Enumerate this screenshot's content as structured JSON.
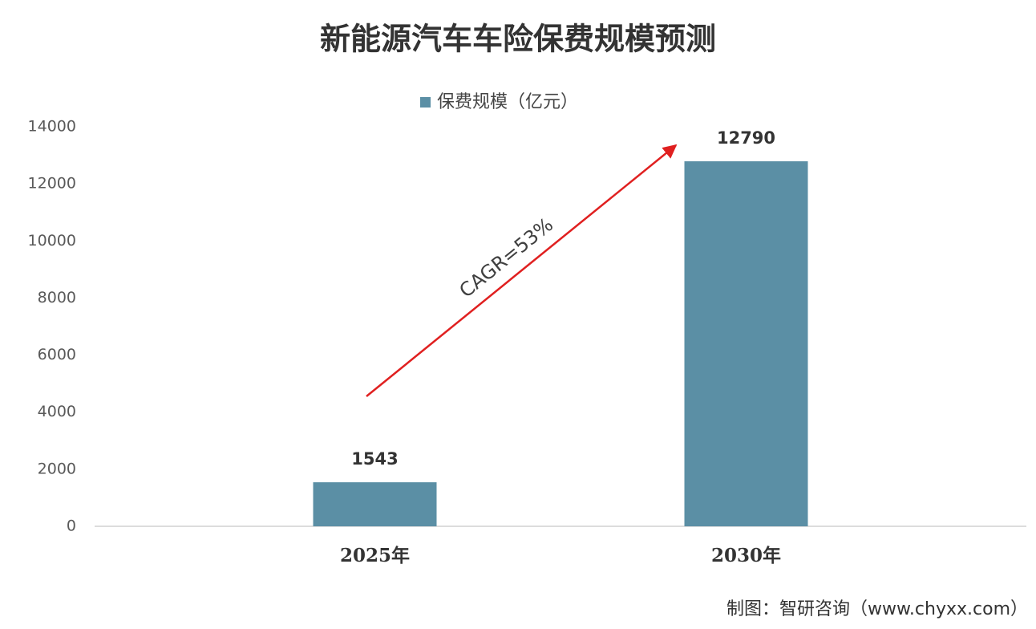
{
  "chart_data": {
    "type": "bar",
    "title": "新能源汽车车险保费规模预测",
    "categories": [
      "2025年",
      "2030年"
    ],
    "series": [
      {
        "name": "保费规模（亿元）",
        "color": "#5b8fa5",
        "values": [
          1543,
          12790
        ]
      }
    ],
    "ylim": [
      0,
      14000
    ],
    "yticks": [
      0,
      2000,
      4000,
      6000,
      8000,
      10000,
      12000,
      14000
    ],
    "grid": false,
    "legend": "top",
    "annotation": "CAGR=53%",
    "source": "制图：智研咨询（www.chyxx.com）"
  }
}
